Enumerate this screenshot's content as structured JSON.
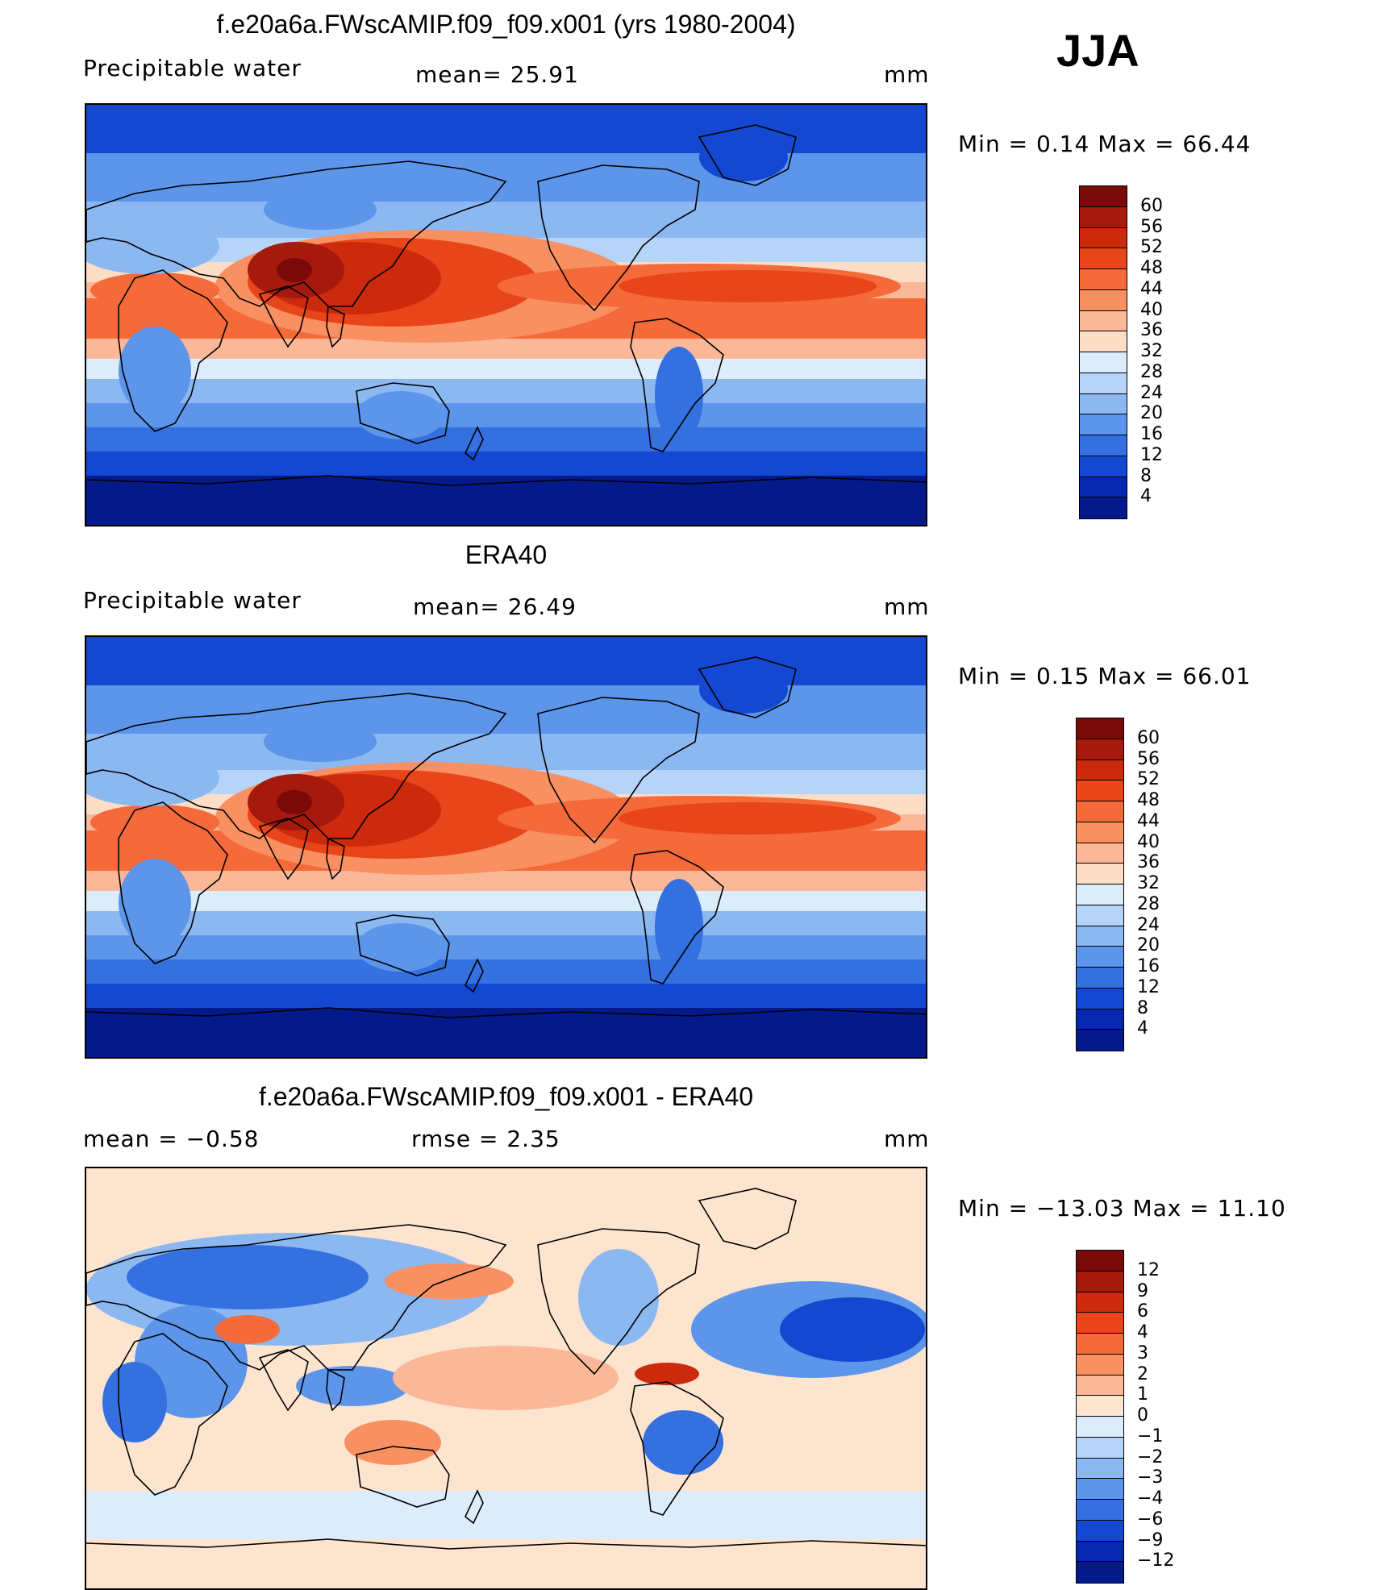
{
  "season": "JJA",
  "panels": [
    {
      "title": "f.e20a6a.FWscAMIP.f09_f09.x001 (yrs 1980-2004)",
      "left_label": "Precipitable  water",
      "mid_label": "mean=   25.91",
      "units": "mm",
      "minmax": "Min  =     0.14  Max  =    66.44",
      "type": "field",
      "levels": [
        "60",
        "56",
        "52",
        "48",
        "44",
        "40",
        "36",
        "32",
        "28",
        "24",
        "20",
        "16",
        "12",
        "8",
        "4"
      ],
      "colors": [
        "#7a0a0a",
        "#a51a0c",
        "#cc2a0c",
        "#e8451a",
        "#f46a3a",
        "#f99062",
        "#fbb898",
        "#fdddc5",
        "#dcecfb",
        "#b6d4f7",
        "#8cb8f2",
        "#5c95ea",
        "#3470e0",
        "#1448d0",
        "#0628b0",
        "#041a8a"
      ]
    },
    {
      "title": "ERA40",
      "left_label": "Precipitable  water",
      "mid_label": "mean=   26.49",
      "units": "mm",
      "minmax": "Min  =     0.15  Max  =    66.01",
      "type": "field",
      "levels": [
        "60",
        "56",
        "52",
        "48",
        "44",
        "40",
        "36",
        "32",
        "28",
        "24",
        "20",
        "16",
        "12",
        "8",
        "4"
      ],
      "colors": [
        "#7a0a0a",
        "#a51a0c",
        "#cc2a0c",
        "#e8451a",
        "#f46a3a",
        "#f99062",
        "#fbb898",
        "#fdddc5",
        "#dcecfb",
        "#b6d4f7",
        "#8cb8f2",
        "#5c95ea",
        "#3470e0",
        "#1448d0",
        "#0628b0",
        "#041a8a"
      ]
    },
    {
      "title": "f.e20a6a.FWscAMIP.f09_f09.x001 - ERA40",
      "left_label": "mean  =    −0.58",
      "mid_label": "rmse  =     2.35",
      "units": "mm",
      "minmax": "Min  = −13.03  Max  =    11.10",
      "type": "diff",
      "levels": [
        "12",
        "9",
        "6",
        "4",
        "3",
        "2",
        "1",
        "0",
        "−1",
        "−2",
        "−3",
        "−4",
        "−6",
        "−9",
        "−12"
      ],
      "colors": [
        "#7a0a0a",
        "#a51a0c",
        "#cc2a0c",
        "#e8451a",
        "#f46a3a",
        "#f99062",
        "#fbb898",
        "#fde4cf",
        "#dcecfb",
        "#b6d4f7",
        "#8cb8f2",
        "#5c95ea",
        "#3470e0",
        "#1448d0",
        "#0628b0",
        "#041a8a"
      ]
    }
  ]
}
